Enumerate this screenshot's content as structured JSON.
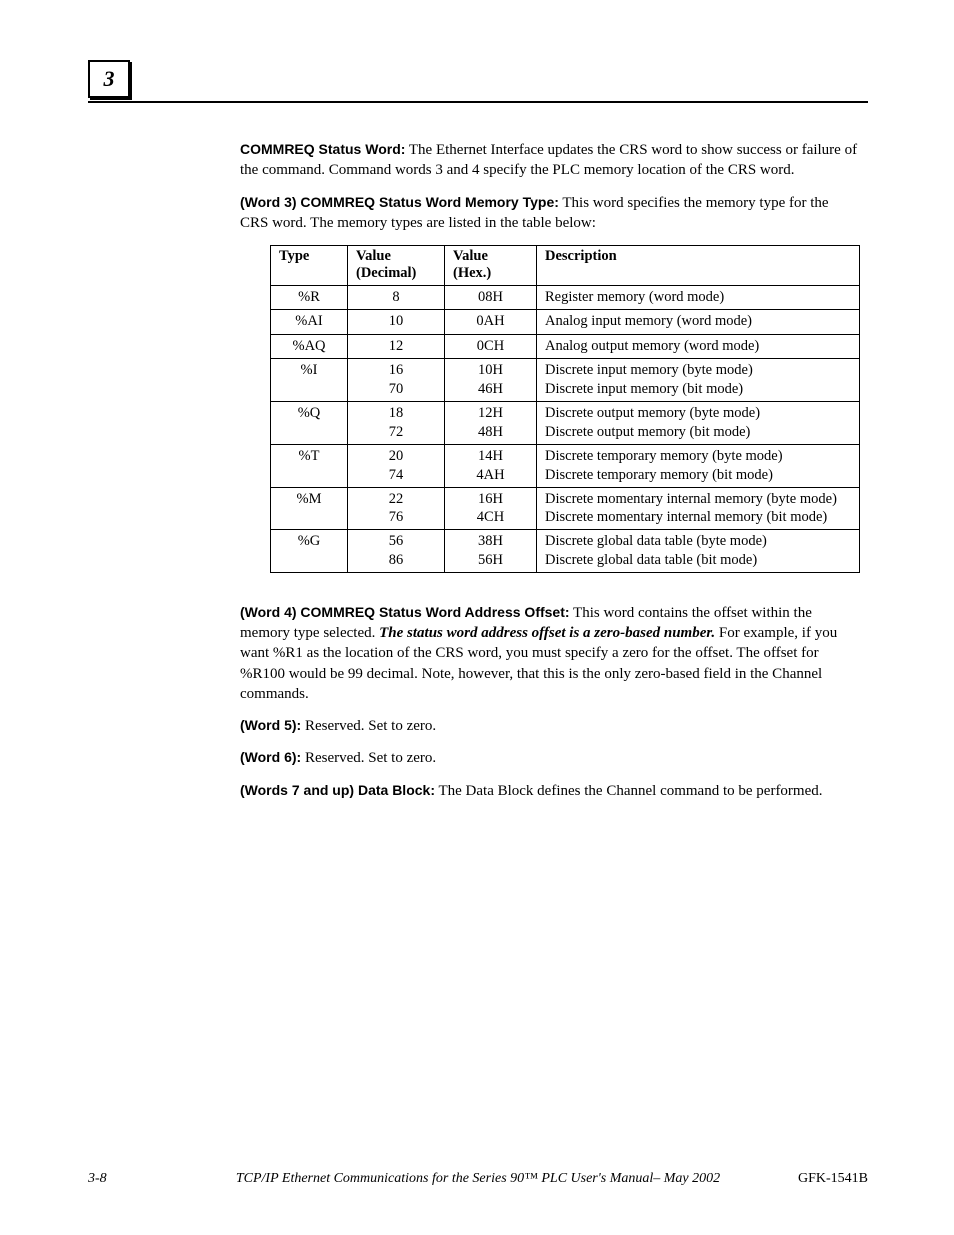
{
  "chapter": "3",
  "sections": {
    "commreq_status": {
      "lead": "COMMREQ Status Word:",
      "text": "The Ethernet Interface updates the CRS word to show success or failure of the command.  Command words 3 and 4 specify the PLC memory location of the CRS word."
    },
    "word3": {
      "lead": "(Word 3) COMMREQ Status Word Memory Type:",
      "text": "This word specifies the memory type for the CRS word.  The memory types are listed in the table below:"
    },
    "word4": {
      "lead": "(Word 4) COMMREQ Status Word Address Offset:",
      "text_a": "This word contains the offset within the memory type selected.  ",
      "text_italic": "The status word address offset is a zero-based number.",
      "text_b": "  For example, if you want %R1 as the location of the CRS word, you must specify a zero for the offset.  The offset for %R100 would be 99 decimal.  Note, however, that this is the only zero-based field in the Channel commands."
    },
    "word5": {
      "lead": " (Word 5):",
      "text": "Reserved.  Set to zero."
    },
    "word6": {
      "lead": "(Word 6):",
      "text": "Reserved.  Set to zero."
    },
    "words7": {
      "lead": "(Words 7 and up) Data Block:",
      "text": "The Data Block defines the Channel command to be performed."
    }
  },
  "table": {
    "headers": {
      "type": "Type",
      "valdec": "Value (Decimal)",
      "valhex": "Value (Hex.)",
      "desc": "Description"
    },
    "rows": [
      {
        "type": "%R",
        "valdec": "8",
        "valhex": "08H",
        "desc": "Register memory (word mode)"
      },
      {
        "type": "%AI",
        "valdec": "10",
        "valhex": "0AH",
        "desc": "Analog input memory (word mode)"
      },
      {
        "type": "%AQ",
        "valdec": "12",
        "valhex": "0CH",
        "desc": "Analog output memory (word mode)"
      },
      {
        "type": "%I",
        "valdec": "16\n70",
        "valhex": "10H\n46H",
        "desc": "Discrete input memory (byte mode)\nDiscrete input memory (bit mode)"
      },
      {
        "type": "%Q",
        "valdec": "18\n72",
        "valhex": "12H\n48H",
        "desc": "Discrete output memory (byte mode)\nDiscrete output memory (bit mode)"
      },
      {
        "type": "%T",
        "valdec": "20\n74",
        "valhex": "14H\n4AH",
        "desc": "Discrete temporary memory (byte mode)\nDiscrete temporary memory (bit mode)"
      },
      {
        "type": "%M",
        "valdec": "22\n76",
        "valhex": "16H\n4CH",
        "desc": "Discrete momentary internal memory (byte mode)\nDiscrete momentary internal memory (bit mode)"
      },
      {
        "type": "%G",
        "valdec": "56\n86",
        "valhex": "38H\n56H",
        "desc": "Discrete global data table (byte mode)\nDiscrete global data table (bit mode)"
      }
    ]
  },
  "footer": {
    "page": "3-8",
    "center": "TCP/IP Ethernet Communications for the Series 90™ PLC User's Manual– May 2002",
    "right": "GFK-1541B"
  }
}
